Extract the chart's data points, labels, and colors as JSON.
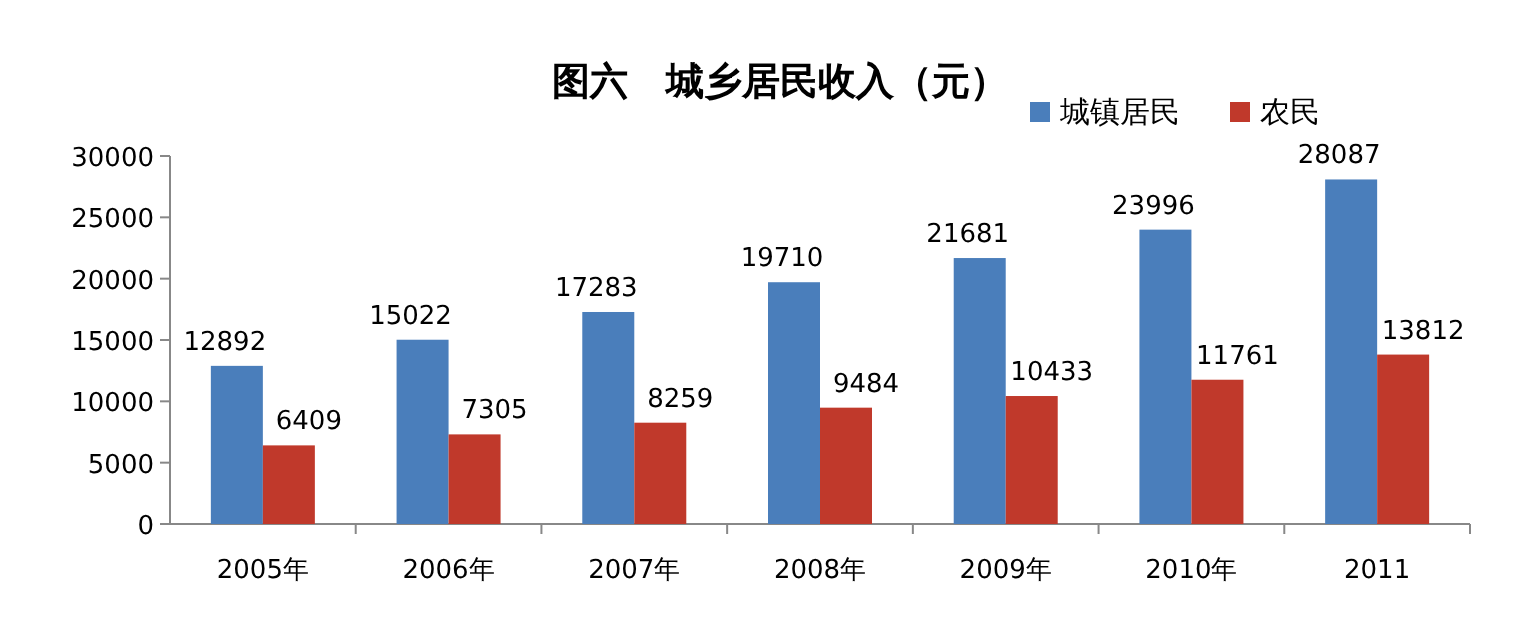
{
  "chart_data": {
    "type": "bar",
    "title": "图六　城乡居民收入（元）",
    "categories": [
      "2005年",
      "2006年",
      "2007年",
      "2008年",
      "2009年",
      "2010年",
      "2011"
    ],
    "series": [
      {
        "name": "城镇居民",
        "color": "#4a7ebb",
        "values": [
          12892,
          15022,
          17283,
          19710,
          21681,
          23996,
          28087
        ]
      },
      {
        "name": "农民",
        "color": "#c0392b",
        "values": [
          6409,
          7305,
          8259,
          9484,
          10433,
          11761,
          13812
        ]
      }
    ],
    "ylim": [
      0,
      30000
    ],
    "yticks": [
      0,
      5000,
      10000,
      15000,
      20000,
      25000,
      30000
    ],
    "legend": "top right",
    "data_labels": true
  }
}
